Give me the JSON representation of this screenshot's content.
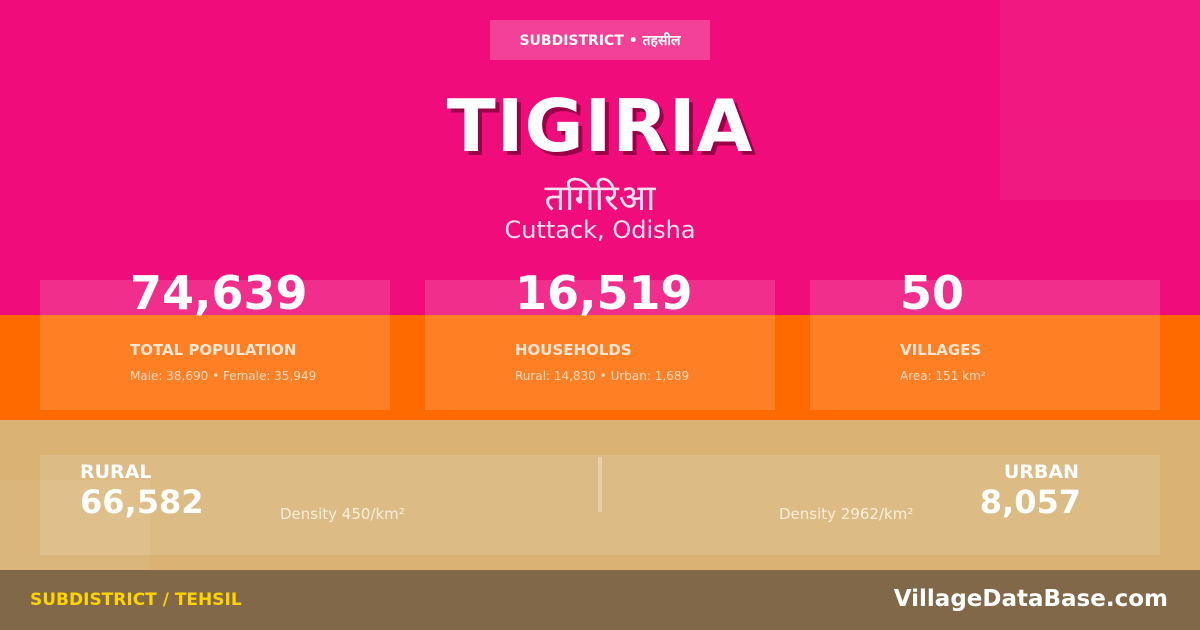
{
  "colors": {
    "pink": "#f00c7b",
    "orange": "#ff6a00",
    "tan": "#d9b274",
    "footer": "#806848",
    "footer_label": "#ffd400"
  },
  "header": {
    "badge": "SUBDISTRICT • तहसील",
    "title": "TIGIRIA",
    "title_hindi": "तगिरिआ",
    "location": "Cuttack, Odisha"
  },
  "stats": [
    {
      "value": "74,639",
      "label": "TOTAL POPULATION",
      "sub": "Male: 38,690 • Female: 35,949"
    },
    {
      "value": "16,519",
      "label": "HOUSEHOLDS",
      "sub": "Rural: 14,830 • Urban: 1,689"
    },
    {
      "value": "50",
      "label": "VILLAGES",
      "sub": "Area: 151 km²"
    }
  ],
  "split": {
    "rural": {
      "label": "RURAL",
      "value": "66,582",
      "density": "Density 450/km²"
    },
    "urban": {
      "label": "URBAN",
      "value": "8,057",
      "density": "Density 2962/km²"
    }
  },
  "footer": {
    "left": "SUBDISTRICT / TEHSIL",
    "right": "VillageDataBase.com"
  }
}
